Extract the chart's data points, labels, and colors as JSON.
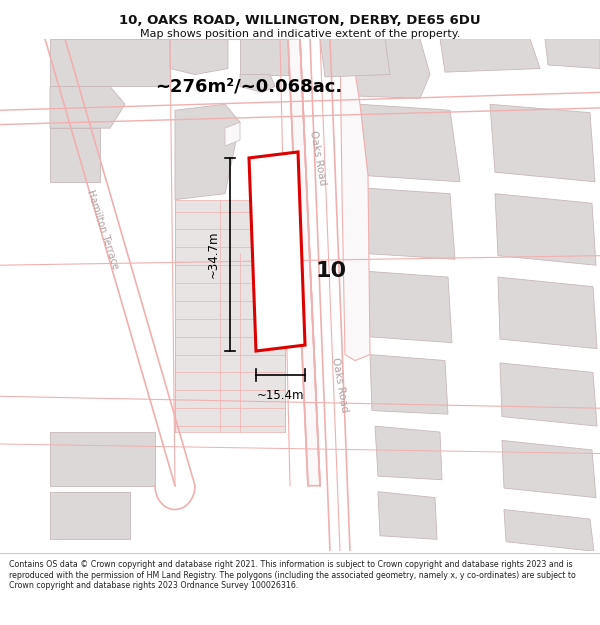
{
  "title_line1": "10, OAKS ROAD, WILLINGTON, DERBY, DE65 6DU",
  "title_line2": "Map shows position and indicative extent of the property.",
  "area_text": "~276m²/~0.068ac.",
  "dim_height": "~34.7m",
  "dim_width": "~15.4m",
  "number_label": "10",
  "road_label_top": "Oaks Road",
  "road_label_bot": "Oaks Road",
  "street_label": "Hamilton Terrace",
  "footer_text": "Contains OS data © Crown copyright and database right 2021. This information is subject to Crown copyright and database rights 2023 and is reproduced with the permission of HM Land Registry. The polygons (including the associated geometry, namely x, y co-ordinates) are subject to Crown copyright and database rights 2023 Ordnance Survey 100026316.",
  "map_bg": "#faf8f8",
  "building_fill": "#ddd8d8",
  "building_edge": "#c8b8b8",
  "road_line_color": "#f0b0b0",
  "highlight_fill": "#ffffff",
  "highlight_edge": "#dd0000",
  "text_color": "#111111",
  "road_text_color": "#b0a0a0",
  "footer_bg": "#ffffff",
  "title_bg": "#ffffff"
}
